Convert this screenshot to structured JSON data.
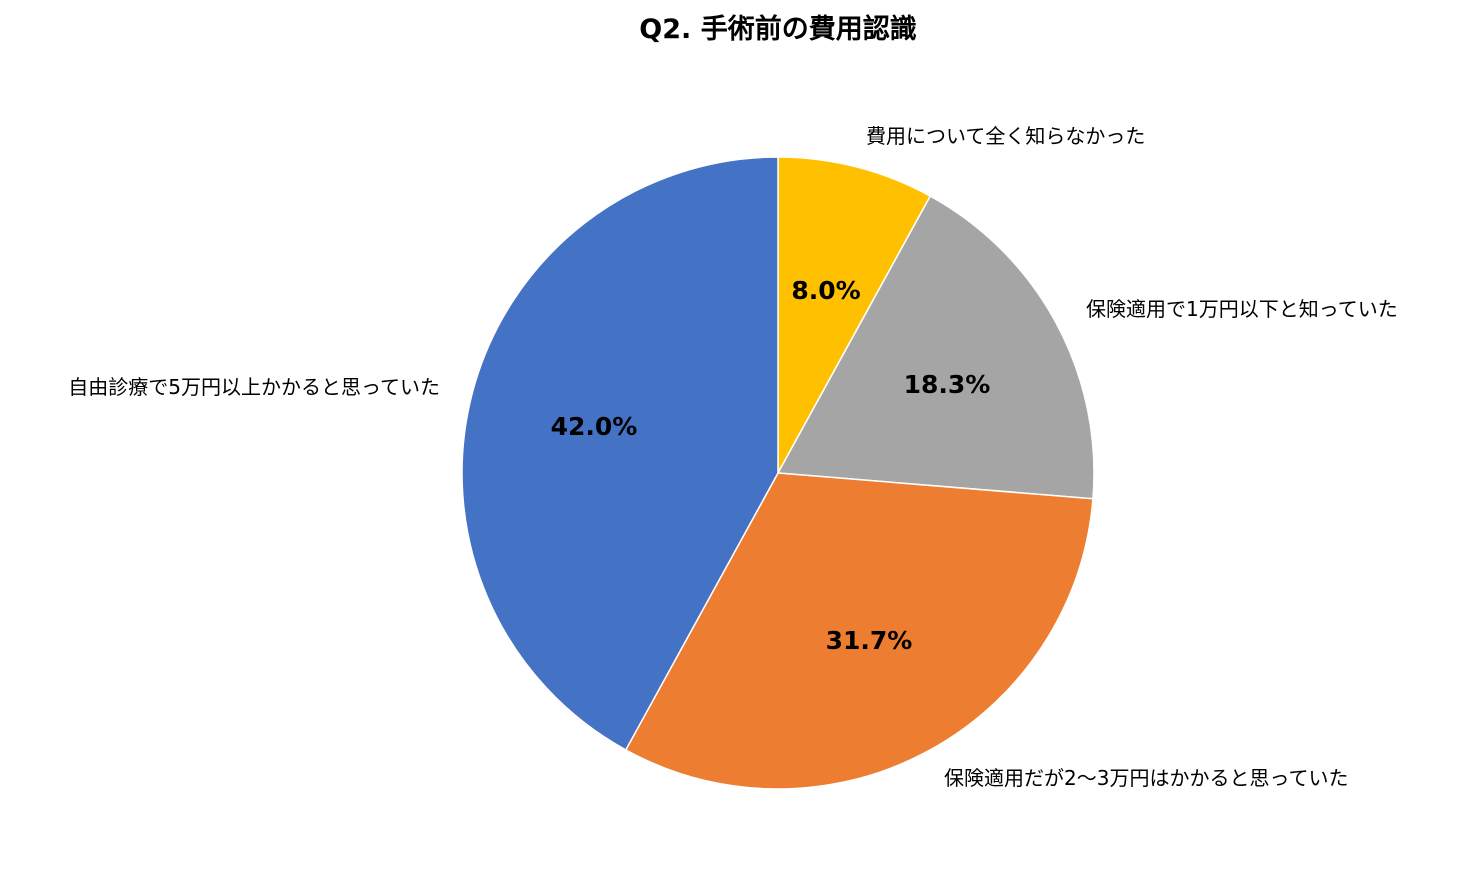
{
  "chart_data": {
    "type": "pie",
    "title": "Q2. 手術前の費用認識",
    "start_angle_deg": 0,
    "direction": "clockwise",
    "legend": "none",
    "slices": [
      {
        "label": "費用について全く知らなかった",
        "value": 8.0,
        "display": "8.0%",
        "color": "#FFC000"
      },
      {
        "label": "保険適用で1万円以下と知っていた",
        "value": 18.3,
        "display": "18.3%",
        "color": "#A5A5A5"
      },
      {
        "label": "保険適用だが2〜3万円はかかると思っていた",
        "value": 31.7,
        "display": "31.7%",
        "color": "#ED7D31"
      },
      {
        "label": "自由診療で5万円以上かかると思っていた",
        "value": 42.0,
        "display": "42.0%",
        "color": "#4472C4"
      }
    ]
  }
}
